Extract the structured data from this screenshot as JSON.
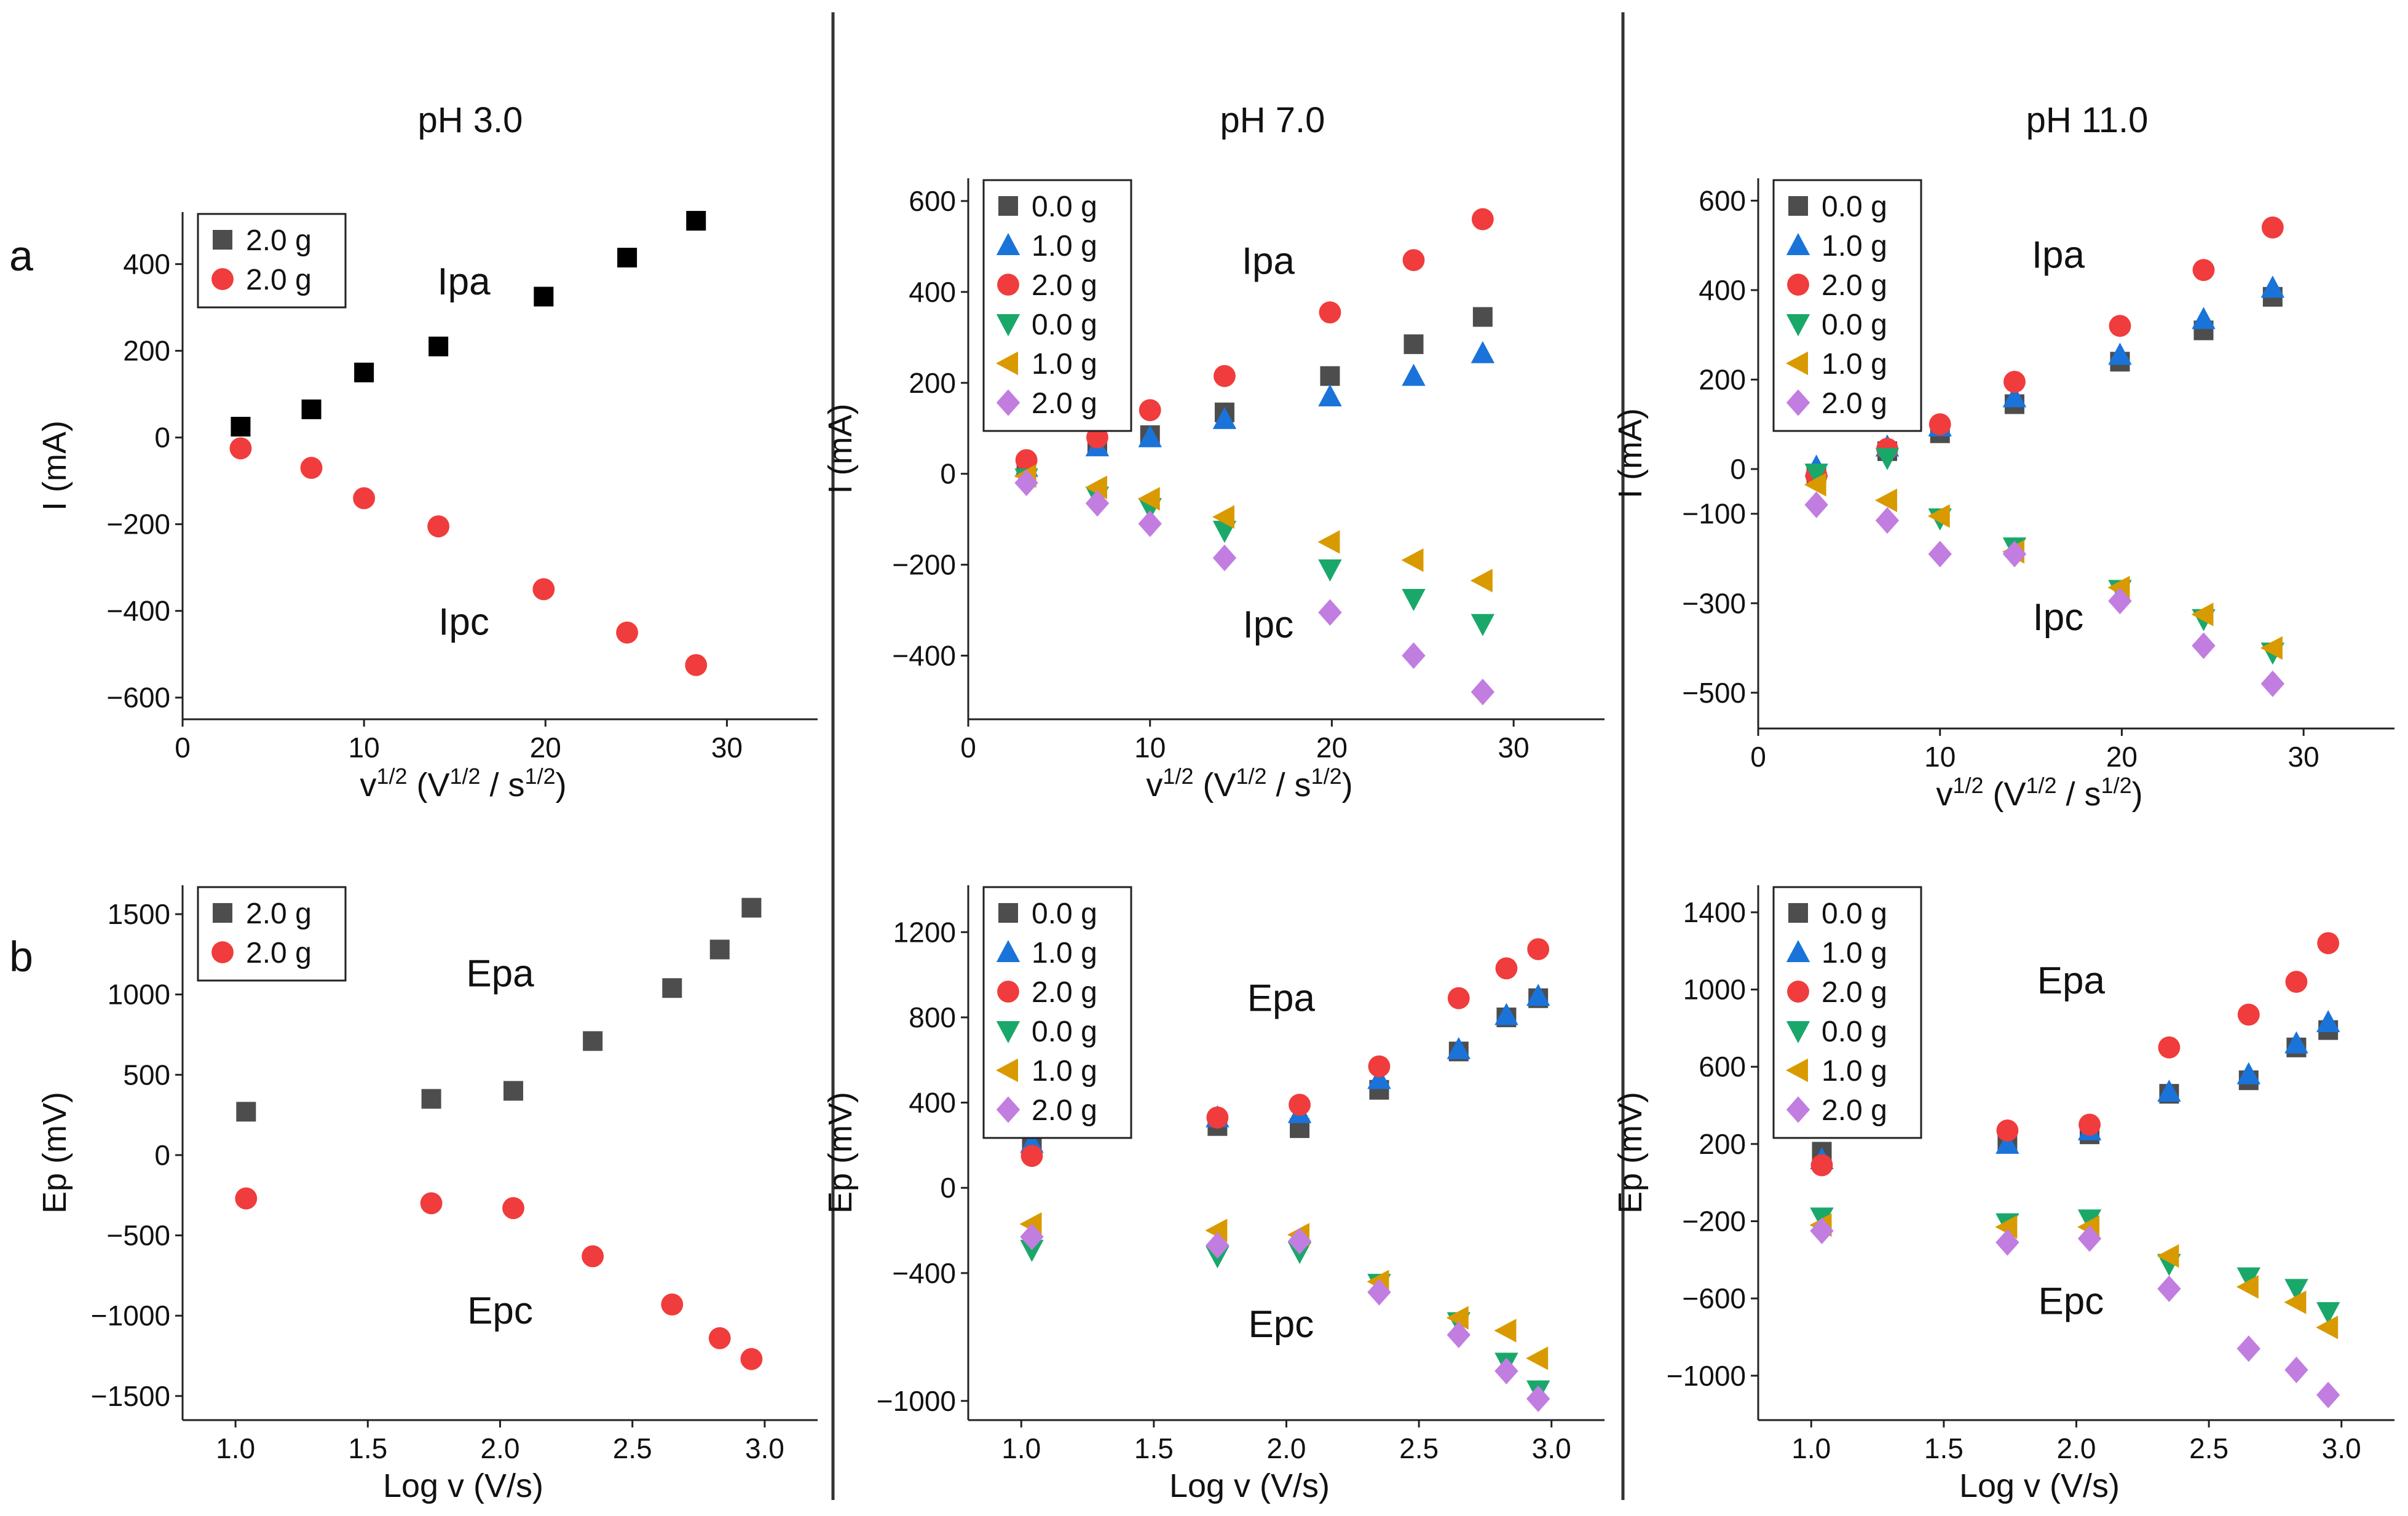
{
  "figure": {
    "row_labels": [
      "a",
      "b"
    ],
    "column_titles": [
      "pH 3.0",
      "pH 7.0",
      "pH 11.0"
    ],
    "marker_colors": {
      "gray_square": "#4d4d4d",
      "black_square": "#000000",
      "blue_triangle": "#1a73d9",
      "red_circle": "#f03c3c",
      "green_down_triangle": "#1aa86a",
      "orange_left_triangle": "#d99a00",
      "purple_diamond": "#c27de0"
    }
  },
  "chart_data": [
    {
      "id": "a1",
      "type": "scatter",
      "title": "pH 3.0",
      "row_label": "a",
      "xlabel": "v^1/2 (V^1/2 / s^1/2)",
      "ylabel": "I (mA)",
      "xlim": [
        0,
        35
      ],
      "ylim": [
        -650,
        520
      ],
      "xticks": [
        0,
        10,
        20,
        30
      ],
      "yticks": [
        -600,
        -400,
        -200,
        0,
        200,
        400
      ],
      "grid": false,
      "legend_position": "top-left",
      "annotations": [
        {
          "text": "Ipa",
          "x": 15.5,
          "y": 330
        },
        {
          "text": "Ipc",
          "x": 15.5,
          "y": -455
        }
      ],
      "series": [
        {
          "name": "2.0 g",
          "marker": "square",
          "color": "#000000",
          "legend_color": "#4d4d4d",
          "x": [
            3.2,
            7.1,
            10.0,
            14.1,
            19.9,
            24.5,
            28.3
          ],
          "y": [
            25,
            65,
            150,
            210,
            325,
            415,
            500
          ]
        },
        {
          "name": "2.0 g",
          "marker": "circle",
          "color": "#f03c3c",
          "x": [
            3.2,
            7.1,
            10.0,
            14.1,
            19.9,
            24.5,
            28.3
          ],
          "y": [
            -25,
            -70,
            -140,
            -205,
            -350,
            -450,
            -525
          ]
        }
      ]
    },
    {
      "id": "a2",
      "type": "scatter",
      "title": "pH 7.0",
      "xlabel": "v^1/2 (V^1/2 / s^1/2)",
      "ylabel": "I (mA)",
      "xlim": [
        0,
        35
      ],
      "ylim": [
        -540,
        650
      ],
      "xticks": [
        0,
        10,
        20,
        30
      ],
      "yticks": [
        -400,
        -200,
        0,
        200,
        400,
        600
      ],
      "grid": false,
      "legend_position": "top-left",
      "annotations": [
        {
          "text": "Ipa",
          "x": 16.5,
          "y": 440
        },
        {
          "text": "Ipc",
          "x": 16.5,
          "y": -360
        }
      ],
      "series": [
        {
          "name": "0.0 g",
          "marker": "square",
          "color": "#4d4d4d",
          "x": [
            3.2,
            7.1,
            10.0,
            14.1,
            19.9,
            24.5,
            28.3
          ],
          "y": [
            20,
            65,
            85,
            135,
            215,
            285,
            345
          ]
        },
        {
          "name": "1.0 g",
          "marker": "triangle-up",
          "color": "#1a73d9",
          "x": [
            3.2,
            7.1,
            10.0,
            14.1,
            19.9,
            24.5,
            28.3
          ],
          "y": [
            15,
            60,
            80,
            120,
            170,
            215,
            265
          ]
        },
        {
          "name": "2.0 g",
          "marker": "circle",
          "color": "#f03c3c",
          "x": [
            3.2,
            7.1,
            10.0,
            14.1,
            19.9,
            24.5,
            28.3
          ],
          "y": [
            30,
            80,
            140,
            215,
            355,
            470,
            560
          ]
        },
        {
          "name": "0.0 g",
          "marker": "triangle-down",
          "color": "#1aa86a",
          "x": [
            3.2,
            7.1,
            10.0,
            14.1,
            19.9,
            24.5,
            28.3
          ],
          "y": [
            -10,
            -50,
            -75,
            -125,
            -210,
            -275,
            -330
          ]
        },
        {
          "name": "1.0 g",
          "marker": "triangle-left",
          "color": "#d99a00",
          "x": [
            3.2,
            7.1,
            10.0,
            14.1,
            19.9,
            24.5,
            28.3
          ],
          "y": [
            -5,
            -30,
            -55,
            -95,
            -150,
            -190,
            -235
          ]
        },
        {
          "name": "2.0 g",
          "marker": "diamond",
          "color": "#c27de0",
          "x": [
            3.2,
            7.1,
            10.0,
            14.1,
            19.9,
            24.5,
            28.3
          ],
          "y": [
            -20,
            -65,
            -110,
            -185,
            -305,
            -400,
            -480
          ]
        }
      ]
    },
    {
      "id": "a3",
      "type": "scatter",
      "title": "pH 11.0",
      "xlabel": "v^1/2 (V^1/2 / s^1/2)",
      "ylabel": "I (mA)",
      "xlim": [
        0,
        35
      ],
      "ylim": [
        -580,
        650
      ],
      "xticks": [
        0,
        10,
        20,
        30
      ],
      "yticks": [
        -500,
        -300,
        -100,
        0,
        200,
        400,
        600
      ],
      "grid": false,
      "legend_position": "top-left",
      "annotations": [
        {
          "text": "Ipa",
          "x": 16.5,
          "y": 450
        },
        {
          "text": "Ipc",
          "x": 16.5,
          "y": -360
        }
      ],
      "series": [
        {
          "name": "0.0 g",
          "marker": "square",
          "color": "#4d4d4d",
          "x": [
            3.2,
            7.1,
            10.0,
            14.1,
            19.9,
            24.5,
            28.3
          ],
          "y": [
            -10,
            40,
            80,
            145,
            240,
            310,
            385
          ]
        },
        {
          "name": "1.0 g",
          "marker": "triangle-up",
          "color": "#1a73d9",
          "x": [
            3.2,
            7.1,
            10.0,
            14.1,
            19.9,
            24.5,
            28.3
          ],
          "y": [
            5,
            50,
            95,
            160,
            255,
            335,
            405
          ]
        },
        {
          "name": "2.0 g",
          "marker": "circle",
          "color": "#f03c3c",
          "x": [
            3.2,
            7.1,
            10.0,
            14.1,
            19.9,
            24.5,
            28.3
          ],
          "y": [
            -15,
            45,
            100,
            195,
            320,
            445,
            540
          ]
        },
        {
          "name": "0.0 g",
          "marker": "triangle-down",
          "color": "#1aa86a",
          "x": [
            3.2,
            7.1,
            10.0,
            14.1,
            19.9,
            24.5,
            28.3
          ],
          "y": [
            -10,
            25,
            -110,
            -175,
            -270,
            -335,
            -410
          ]
        },
        {
          "name": "1.0 g",
          "marker": "triangle-left",
          "color": "#d99a00",
          "x": [
            3.2,
            7.1,
            10.0,
            14.1,
            19.9,
            24.5,
            28.3
          ],
          "y": [
            -35,
            -70,
            -105,
            -185,
            -265,
            -325,
            -400
          ]
        },
        {
          "name": "2.0 g",
          "marker": "diamond",
          "color": "#c27de0",
          "x": [
            3.2,
            7.1,
            10.0,
            14.1,
            19.9,
            24.5,
            28.3
          ],
          "y": [
            -80,
            -115,
            -190,
            -190,
            -295,
            -395,
            -480
          ]
        }
      ]
    },
    {
      "id": "b1",
      "type": "scatter",
      "row_label": "b",
      "xlabel": "Log v (V/s)",
      "ylabel": "Ep (mV)",
      "xlim": [
        0.8,
        3.2
      ],
      "ylim": [
        -1650,
        1680
      ],
      "xticks": [
        1.0,
        1.5,
        2.0,
        2.5,
        3.0
      ],
      "xtick_labels": [
        "1.0",
        "1.5",
        "2.0",
        "2.5",
        "3.0"
      ],
      "yticks": [
        -1500,
        -1000,
        -500,
        0,
        500,
        1000,
        1500
      ],
      "grid": false,
      "legend_position": "top-left",
      "annotations": [
        {
          "text": "Epa",
          "x": 2.0,
          "y": 1050
        },
        {
          "text": "Epc",
          "x": 2.0,
          "y": -1050
        }
      ],
      "series": [
        {
          "name": "2.0 g",
          "marker": "square",
          "color": "#4d4d4d",
          "x": [
            1.04,
            1.74,
            2.05,
            2.35,
            2.65,
            2.83,
            2.95
          ],
          "y": [
            270,
            350,
            400,
            710,
            1040,
            1280,
            1540
          ]
        },
        {
          "name": "2.0 g",
          "marker": "circle",
          "color": "#f03c3c",
          "x": [
            1.04,
            1.74,
            2.05,
            2.35,
            2.65,
            2.83,
            2.95
          ],
          "y": [
            -270,
            -300,
            -330,
            -630,
            -930,
            -1140,
            -1270
          ]
        }
      ]
    },
    {
      "id": "b2",
      "type": "scatter",
      "xlabel": "Log v (V/s)",
      "ylabel": "Ep (mV)",
      "xlim": [
        0.8,
        3.2
      ],
      "ylim": [
        -1090,
        1420
      ],
      "xticks": [
        1.0,
        1.5,
        2.0,
        2.5,
        3.0
      ],
      "xtick_labels": [
        "1.0",
        "1.5",
        "2.0",
        "2.5",
        "3.0"
      ],
      "yticks": [
        -1000,
        -400,
        0,
        400,
        800,
        1200
      ],
      "grid": false,
      "legend_position": "top-left",
      "annotations": [
        {
          "text": "Epa",
          "x": 1.98,
          "y": 830
        },
        {
          "text": "Epc",
          "x": 1.98,
          "y": -700
        }
      ],
      "series": [
        {
          "name": "0.0 g",
          "marker": "square",
          "color": "#4d4d4d",
          "x": [
            1.04,
            1.74,
            2.05,
            2.35,
            2.65,
            2.83,
            2.95
          ],
          "y": [
            200,
            290,
            280,
            460,
            640,
            800,
            890
          ]
        },
        {
          "name": "1.0 g",
          "marker": "triangle-up",
          "color": "#1a73d9",
          "x": [
            1.04,
            1.74,
            2.05,
            2.35,
            2.65,
            2.83,
            2.95
          ],
          "y": [
            210,
            330,
            350,
            510,
            650,
            810,
            900
          ]
        },
        {
          "name": "2.0 g",
          "marker": "circle",
          "color": "#f03c3c",
          "x": [
            1.04,
            1.74,
            2.05,
            2.35,
            2.65,
            2.83,
            2.95
          ],
          "y": [
            150,
            330,
            390,
            570,
            890,
            1030,
            1120
          ]
        },
        {
          "name": "0.0 g",
          "marker": "triangle-down",
          "color": "#1aa86a",
          "x": [
            1.04,
            1.74,
            2.05,
            2.35,
            2.65,
            2.83,
            2.95
          ],
          "y": [
            -290,
            -320,
            -300,
            -450,
            -630,
            -820,
            -950
          ]
        },
        {
          "name": "1.0 g",
          "marker": "triangle-left",
          "color": "#d99a00",
          "x": [
            1.04,
            1.74,
            2.05,
            2.35,
            2.65,
            2.83,
            2.95
          ],
          "y": [
            -170,
            -200,
            -220,
            -440,
            -610,
            -670,
            -800
          ]
        },
        {
          "name": "2.0 g",
          "marker": "diamond",
          "color": "#c27de0",
          "x": [
            1.04,
            1.74,
            2.05,
            2.35,
            2.65,
            2.83,
            2.95
          ],
          "y": [
            -230,
            -270,
            -250,
            -490,
            -690,
            -860,
            -990
          ]
        }
      ]
    },
    {
      "id": "b3",
      "type": "scatter",
      "xlabel": "Log v (V/s)",
      "ylabel": "Ep (mV)",
      "xlim": [
        0.8,
        3.2
      ],
      "ylim": [
        -1230,
        1540
      ],
      "xticks": [
        1.0,
        1.5,
        2.0,
        2.5,
        3.0
      ],
      "xtick_labels": [
        "1.0",
        "1.5",
        "2.0",
        "2.5",
        "3.0"
      ],
      "yticks": [
        -1000,
        -600,
        -200,
        200,
        600,
        1000,
        1400
      ],
      "grid": false,
      "legend_position": "top-left",
      "annotations": [
        {
          "text": "Epa",
          "x": 1.98,
          "y": 980
        },
        {
          "text": "Epc",
          "x": 1.98,
          "y": -680
        }
      ],
      "series": [
        {
          "name": "0.0 g",
          "marker": "square",
          "color": "#4d4d4d",
          "x": [
            1.04,
            1.74,
            2.05,
            2.35,
            2.65,
            2.83,
            2.95
          ],
          "y": [
            160,
            220,
            250,
            460,
            530,
            700,
            790
          ]
        },
        {
          "name": "1.0 g",
          "marker": "triangle-up",
          "color": "#1a73d9",
          "x": [
            1.04,
            1.74,
            2.05,
            2.35,
            2.65,
            2.83,
            2.95
          ],
          "y": [
            120,
            200,
            270,
            470,
            560,
            720,
            830
          ]
        },
        {
          "name": "2.0 g",
          "marker": "circle",
          "color": "#f03c3c",
          "x": [
            1.04,
            1.74,
            2.05,
            2.35,
            2.65,
            2.83,
            2.95
          ],
          "y": [
            90,
            270,
            300,
            700,
            870,
            1040,
            1240
          ]
        },
        {
          "name": "0.0 g",
          "marker": "triangle-down",
          "color": "#1aa86a",
          "x": [
            1.04,
            1.74,
            2.05,
            2.35,
            2.65,
            2.83,
            2.95
          ],
          "y": [
            -180,
            -210,
            -190,
            -420,
            -490,
            -550,
            -670
          ]
        },
        {
          "name": "1.0 g",
          "marker": "triangle-left",
          "color": "#d99a00",
          "x": [
            1.04,
            1.74,
            2.05,
            2.35,
            2.65,
            2.83,
            2.95
          ],
          "y": [
            -220,
            -230,
            -230,
            -380,
            -540,
            -620,
            -750
          ]
        },
        {
          "name": "2.0 g",
          "marker": "diamond",
          "color": "#c27de0",
          "x": [
            1.04,
            1.74,
            2.05,
            2.35,
            2.65,
            2.83,
            2.95
          ],
          "y": [
            -250,
            -310,
            -290,
            -550,
            -860,
            -970,
            -1100
          ]
        }
      ]
    }
  ]
}
